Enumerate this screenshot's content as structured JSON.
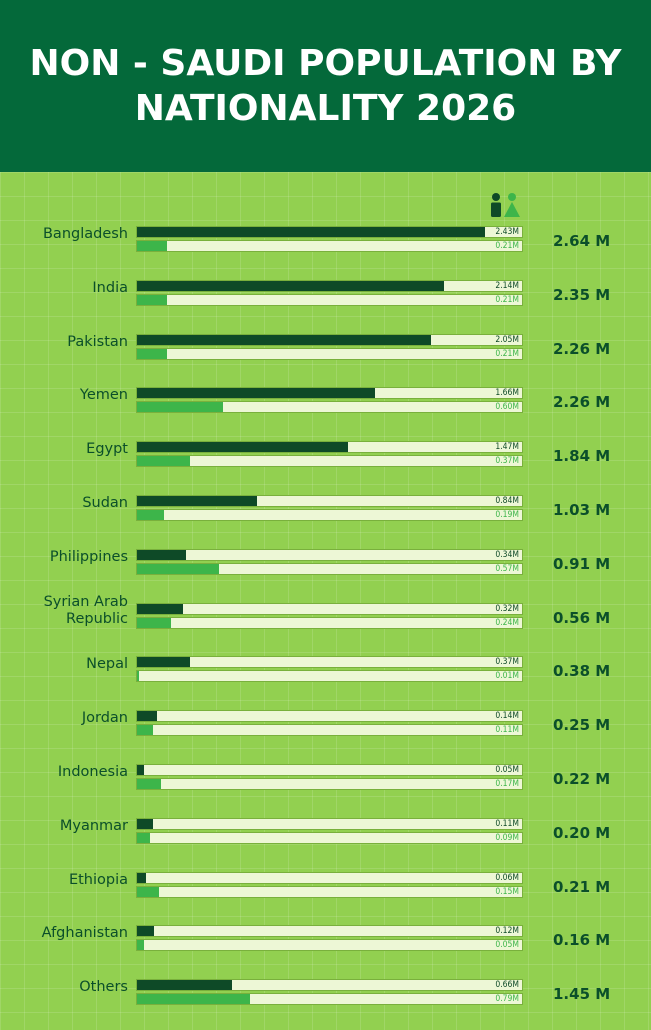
{
  "title": "NON - SAUDI POPULATION BY NATIONALITY 2026",
  "legend": {
    "male_icon": "male-person-icon",
    "female_icon": "female-person-icon"
  },
  "colors": {
    "header": "#04693A",
    "background": "#92D050",
    "male": "#0E4A27",
    "female": "#3DB54A",
    "track": "#EDF7D6"
  },
  "chart_data": {
    "type": "bar",
    "title": "NON - SAUDI POPULATION BY NATIONALITY 2026",
    "xmax": 2.7,
    "categories": [
      "Bangladesh",
      "India",
      "Pakistan",
      "Yemen",
      "Egypt",
      "Sudan",
      "Philippines",
      "Syrian Arab Republic",
      "Nepal",
      "Jordan",
      "Indonesia",
      "Myanmar",
      "Ethiopia",
      "Afghanistan",
      "Others"
    ],
    "series": [
      {
        "values": [
          2.43,
          2.14,
          2.05,
          1.66,
          1.47,
          0.84,
          0.34,
          0.32,
          0.37,
          0.14,
          0.05,
          0.11,
          0.06,
          0.12,
          0.66
        ],
        "value_labels": [
          "2.43M",
          "2.14M",
          "2.05M",
          "1.66M",
          "1.47M",
          "0.84M",
          "0.34M",
          "0.32M",
          "0.37M",
          "0.14M",
          "0.05M",
          "0.11M",
          "0.06M",
          "0.12M",
          "0.66M"
        ]
      },
      {
        "values": [
          0.21,
          0.21,
          0.21,
          0.6,
          0.37,
          0.19,
          0.57,
          0.24,
          0.01,
          0.11,
          0.17,
          0.09,
          0.15,
          0.05,
          0.79
        ],
        "value_labels": [
          "0.21M",
          "0.21M",
          "0.21M",
          "0.60M",
          "0.37M",
          "0.19M",
          "0.57M",
          "0.24M",
          "0.01M",
          "0.11M",
          "0.17M",
          "0.09M",
          "0.15M",
          "0.05M",
          "0.79M"
        ]
      }
    ],
    "totals": [
      "2.64 M",
      "2.35 M",
      "2.26 M",
      "2.26 M",
      "1.84 M",
      "1.03 M",
      "0.91 M",
      "0.56 M",
      "0.38 M",
      "0.25 M",
      "0.22 M",
      "0.20 M",
      "0.21 M",
      "0.16 M",
      "1.45 M"
    ]
  }
}
